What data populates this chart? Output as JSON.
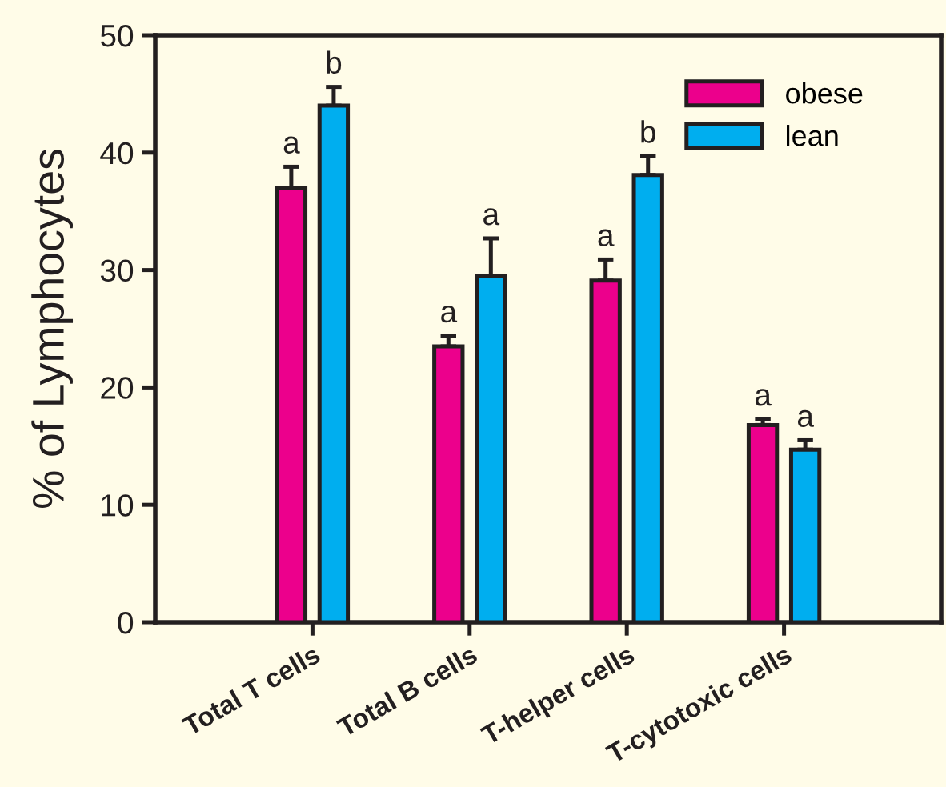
{
  "chart_data": {
    "type": "bar",
    "ylabel": "% of Lymphocytes",
    "categories": [
      "Total T cells",
      "Total B cells",
      "T-helper cells",
      "T-cytotoxic cells"
    ],
    "series": [
      {
        "name": "obese",
        "color": "#ec008c",
        "values": [
          37.0,
          23.5,
          29.1,
          16.8
        ],
        "errors": [
          1.8,
          0.9,
          1.8,
          0.5
        ],
        "value_labels": [
          "a",
          "a",
          "a",
          "a"
        ]
      },
      {
        "name": "lean",
        "color": "#00aeef",
        "values": [
          44.0,
          29.5,
          38.1,
          14.7
        ],
        "errors": [
          1.6,
          3.2,
          1.6,
          0.8
        ],
        "value_labels": [
          "b",
          "a",
          "b",
          "a"
        ]
      }
    ],
    "ylim": [
      0,
      50
    ],
    "yticks": [
      0,
      10,
      20,
      30,
      40,
      50
    ],
    "grid": false,
    "legend": "top right"
  }
}
